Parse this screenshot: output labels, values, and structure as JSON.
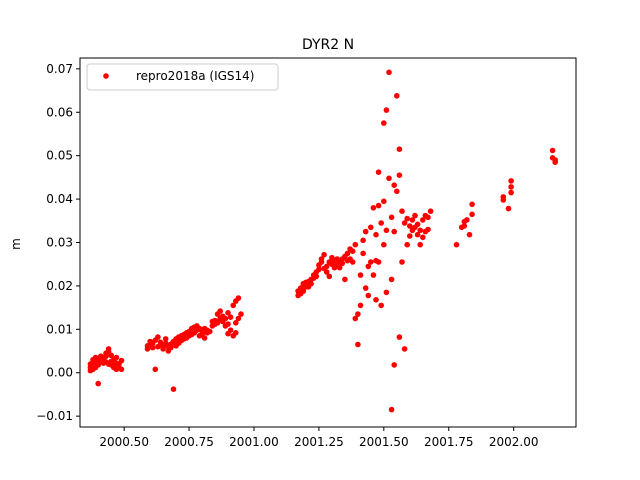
{
  "chart_data": {
    "type": "scatter",
    "title": "DYR2 N",
    "xlabel": "",
    "ylabel": "m",
    "xlim": [
      2000.33,
      2002.24
    ],
    "ylim": [
      -0.0125,
      0.0725
    ],
    "xticks": [
      2000.5,
      2000.75,
      2001.0,
      2001.25,
      2001.5,
      2001.75,
      2002.0
    ],
    "xtick_labels": [
      "2000.50",
      "2000.75",
      "2001.00",
      "2001.25",
      "2001.50",
      "2001.75",
      "2002.00"
    ],
    "yticks": [
      -0.01,
      0.0,
      0.01,
      0.02,
      0.03,
      0.04,
      0.05,
      0.06,
      0.07
    ],
    "ytick_labels": [
      "−0.01",
      "0.00",
      "0.01",
      "0.02",
      "0.03",
      "0.04",
      "0.05",
      "0.06",
      "0.07"
    ],
    "grid": false,
    "legend_position": "top-left",
    "series": [
      {
        "name": "repro2018a (IGS14)",
        "color": "#ff0000",
        "points": [
          [
            2000.37,
            0.0005
          ],
          [
            2000.37,
            0.0012
          ],
          [
            2000.37,
            0.002
          ],
          [
            2000.38,
            0.0008
          ],
          [
            2000.38,
            0.0015
          ],
          [
            2000.38,
            0.0025
          ],
          [
            2000.38,
            0.003
          ],
          [
            2000.39,
            0.0012
          ],
          [
            2000.39,
            0.002
          ],
          [
            2000.39,
            0.0028
          ],
          [
            2000.39,
            0.0035
          ],
          [
            2000.4,
            -0.0025
          ],
          [
            2000.4,
            0.0018
          ],
          [
            2000.4,
            0.0024
          ],
          [
            2000.41,
            0.003
          ],
          [
            2000.41,
            0.0038
          ],
          [
            2000.42,
            0.0022
          ],
          [
            2000.42,
            0.0028
          ],
          [
            2000.42,
            0.0032
          ],
          [
            2000.43,
            0.0025
          ],
          [
            2000.43,
            0.0045
          ],
          [
            2000.44,
            0.002
          ],
          [
            2000.44,
            0.0055
          ],
          [
            2000.44,
            0.0048
          ],
          [
            2000.45,
            0.0018
          ],
          [
            2000.45,
            0.0026
          ],
          [
            2000.45,
            0.004
          ],
          [
            2000.46,
            0.0012
          ],
          [
            2000.46,
            0.003
          ],
          [
            2000.47,
            0.0008
          ],
          [
            2000.47,
            0.0022
          ],
          [
            2000.47,
            0.0035
          ],
          [
            2000.48,
            0.0012
          ],
          [
            2000.48,
            0.002
          ],
          [
            2000.49,
            0.0008
          ],
          [
            2000.49,
            0.0028
          ],
          [
            2000.4,
            0.0032
          ],
          [
            2000.41,
            0.0025
          ],
          [
            2000.43,
            0.0038
          ],
          [
            2000.46,
            0.0018
          ],
          [
            2000.59,
            0.0055
          ],
          [
            2000.59,
            0.0062
          ],
          [
            2000.6,
            0.0065
          ],
          [
            2000.6,
            0.0072
          ],
          [
            2000.61,
            0.0058
          ],
          [
            2000.61,
            0.0068
          ],
          [
            2000.62,
            0.0008
          ],
          [
            2000.62,
            0.0075
          ],
          [
            2000.63,
            0.006
          ],
          [
            2000.63,
            0.0082
          ],
          [
            2000.64,
            0.0065
          ],
          [
            2000.64,
            0.007
          ],
          [
            2000.65,
            0.0055
          ],
          [
            2000.65,
            0.0062
          ],
          [
            2000.66,
            0.0068
          ],
          [
            2000.66,
            0.0078
          ],
          [
            2000.67,
            0.005
          ],
          [
            2000.67,
            0.006
          ],
          [
            2000.68,
            0.0058
          ],
          [
            2000.68,
            0.0066
          ],
          [
            2000.69,
            -0.0038
          ],
          [
            2000.69,
            0.0072
          ],
          [
            2000.7,
            0.0062
          ],
          [
            2000.7,
            0.0078
          ],
          [
            2000.71,
            0.0068
          ],
          [
            2000.71,
            0.0082
          ],
          [
            2000.72,
            0.0074
          ],
          [
            2000.72,
            0.0085
          ],
          [
            2000.73,
            0.0078
          ],
          [
            2000.73,
            0.0088
          ],
          [
            2000.74,
            0.008
          ],
          [
            2000.74,
            0.0092
          ],
          [
            2000.75,
            0.0085
          ],
          [
            2000.75,
            0.0095
          ],
          [
            2000.76,
            0.0088
          ],
          [
            2000.76,
            0.0102
          ],
          [
            2000.77,
            0.0092
          ],
          [
            2000.77,
            0.0105
          ],
          [
            2000.78,
            0.0098
          ],
          [
            2000.78,
            0.0108
          ],
          [
            2000.79,
            0.0085
          ],
          [
            2000.79,
            0.0102
          ],
          [
            2000.8,
            0.0095
          ],
          [
            2000.8,
            0.0088
          ],
          [
            2000.81,
            0.0102
          ],
          [
            2000.81,
            0.008
          ],
          [
            2000.82,
            0.0092
          ],
          [
            2000.82,
            0.0098
          ],
          [
            2000.83,
            0.0095
          ],
          [
            2000.84,
            0.0108
          ],
          [
            2000.84,
            0.0118
          ],
          [
            2000.85,
            0.0112
          ],
          [
            2000.85,
            0.012
          ],
          [
            2000.86,
            0.0115
          ],
          [
            2000.86,
            0.0135
          ],
          [
            2000.87,
            0.0125
          ],
          [
            2000.87,
            0.0142
          ],
          [
            2000.88,
            0.0118
          ],
          [
            2000.88,
            0.013
          ],
          [
            2000.89,
            0.0108
          ],
          [
            2000.89,
            0.0125
          ],
          [
            2000.9,
            0.009
          ],
          [
            2000.9,
            0.0112
          ],
          [
            2000.91,
            0.0098
          ],
          [
            2000.91,
            0.0128
          ],
          [
            2000.92,
            0.0085
          ],
          [
            2000.92,
            0.0155
          ],
          [
            2000.93,
            0.0092
          ],
          [
            2000.93,
            0.0165
          ],
          [
            2000.94,
            0.0125
          ],
          [
            2000.94,
            0.0172
          ],
          [
            2000.95,
            0.0135
          ],
          [
            2000.93,
            0.0115
          ],
          [
            2000.9,
            0.0138
          ],
          [
            2000.86,
            0.0118
          ],
          [
            2001.17,
            0.0178
          ],
          [
            2001.17,
            0.0188
          ],
          [
            2001.18,
            0.0182
          ],
          [
            2001.18,
            0.0195
          ],
          [
            2001.19,
            0.0188
          ],
          [
            2001.19,
            0.0205
          ],
          [
            2001.2,
            0.0198
          ],
          [
            2001.2,
            0.0208
          ],
          [
            2001.21,
            0.021
          ],
          [
            2001.21,
            0.0198
          ],
          [
            2001.22,
            0.0215
          ],
          [
            2001.22,
            0.0205
          ],
          [
            2001.23,
            0.0225
          ],
          [
            2001.23,
            0.0218
          ],
          [
            2001.24,
            0.0232
          ],
          [
            2001.24,
            0.0222
          ],
          [
            2001.25,
            0.0248
          ],
          [
            2001.25,
            0.0238
          ],
          [
            2001.26,
            0.0262
          ],
          [
            2001.26,
            0.0255
          ],
          [
            2001.27,
            0.0272
          ],
          [
            2001.27,
            0.024
          ],
          [
            2001.28,
            0.0245
          ],
          [
            2001.28,
            0.0232
          ],
          [
            2001.29,
            0.0255
          ],
          [
            2001.29,
            0.0222
          ],
          [
            2001.3,
            0.025
          ],
          [
            2001.3,
            0.0265
          ],
          [
            2001.31,
            0.0242
          ],
          [
            2001.31,
            0.0258
          ],
          [
            2001.32,
            0.0248
          ],
          [
            2001.32,
            0.0262
          ],
          [
            2001.33,
            0.0255
          ],
          [
            2001.33,
            0.0242
          ],
          [
            2001.34,
            0.0262
          ],
          [
            2001.34,
            0.0252
          ],
          [
            2001.35,
            0.0268
          ],
          [
            2001.35,
            0.0215
          ],
          [
            2001.36,
            0.0258
          ],
          [
            2001.36,
            0.0275
          ],
          [
            2001.37,
            0.0262
          ],
          [
            2001.37,
            0.0285
          ],
          [
            2001.38,
            0.0255
          ],
          [
            2001.38,
            0.028
          ],
          [
            2001.39,
            0.0295
          ],
          [
            2001.39,
            0.0125
          ],
          [
            2001.4,
            0.0065
          ],
          [
            2001.4,
            0.0135
          ],
          [
            2001.41,
            0.0155
          ],
          [
            2001.41,
            0.0225
          ],
          [
            2001.42,
            0.0305
          ],
          [
            2001.42,
            0.0275
          ],
          [
            2001.43,
            0.0325
          ],
          [
            2001.43,
            0.0195
          ],
          [
            2001.44,
            0.0178
          ],
          [
            2001.44,
            0.0245
          ],
          [
            2001.45,
            0.0335
          ],
          [
            2001.45,
            0.0255
          ],
          [
            2001.46,
            0.038
          ],
          [
            2001.46,
            0.0225
          ],
          [
            2001.47,
            0.0318
          ],
          [
            2001.47,
            0.0168
          ],
          [
            2001.48,
            0.0462
          ],
          [
            2001.48,
            0.0385
          ],
          [
            2001.49,
            0.0345
          ],
          [
            2001.49,
            0.0155
          ],
          [
            2001.5,
            0.0575
          ],
          [
            2001.5,
            0.0395
          ],
          [
            2001.51,
            0.0605
          ],
          [
            2001.51,
            0.0328
          ],
          [
            2001.52,
            0.0692
          ],
          [
            2001.52,
            0.0448
          ],
          [
            2001.53,
            0.0358
          ],
          [
            2001.53,
            0.0215
          ],
          [
            2001.54,
            0.0432
          ],
          [
            2001.54,
            0.0325
          ],
          [
            2001.55,
            0.0638
          ],
          [
            2001.55,
            0.0418
          ],
          [
            2001.56,
            0.0515
          ],
          [
            2001.56,
            0.0455
          ],
          [
            2001.57,
            0.0372
          ],
          [
            2001.57,
            0.0255
          ],
          [
            2001.58,
            0.0345
          ],
          [
            2001.58,
            0.0055
          ],
          [
            2001.59,
            0.0355
          ],
          [
            2001.59,
            0.0295
          ],
          [
            2001.6,
            0.0338
          ],
          [
            2001.6,
            0.0315
          ],
          [
            2001.61,
            0.0352
          ],
          [
            2001.61,
            0.0328
          ],
          [
            2001.62,
            0.0362
          ],
          [
            2001.62,
            0.0335
          ],
          [
            2001.63,
            0.0318
          ],
          [
            2001.63,
            0.0342
          ],
          [
            2001.64,
            0.0295
          ],
          [
            2001.64,
            0.0328
          ],
          [
            2001.65,
            0.0352
          ],
          [
            2001.65,
            0.0312
          ],
          [
            2001.66,
            0.0362
          ],
          [
            2001.66,
            0.0325
          ],
          [
            2001.67,
            0.0358
          ],
          [
            2001.67,
            0.033
          ],
          [
            2001.68,
            0.0372
          ],
          [
            2001.53,
            -0.0085
          ],
          [
            2001.54,
            0.0018
          ],
          [
            2001.56,
            0.0082
          ],
          [
            2001.51,
            0.0185
          ],
          [
            2001.48,
            0.0255
          ],
          [
            2001.5,
            0.0295
          ],
          [
            2001.47,
            0.0258
          ],
          [
            2001.78,
            0.0295
          ],
          [
            2001.8,
            0.0335
          ],
          [
            2001.81,
            0.0348
          ],
          [
            2001.81,
            0.0338
          ],
          [
            2001.82,
            0.0352
          ],
          [
            2001.83,
            0.0318
          ],
          [
            2001.84,
            0.0388
          ],
          [
            2001.84,
            0.0365
          ],
          [
            2001.96,
            0.0398
          ],
          [
            2001.96,
            0.0405
          ],
          [
            2001.98,
            0.0378
          ],
          [
            2001.99,
            0.0415
          ],
          [
            2001.99,
            0.0428
          ],
          [
            2001.99,
            0.0442
          ],
          [
            2002.15,
            0.0512
          ],
          [
            2002.15,
            0.0495
          ],
          [
            2002.16,
            0.0485
          ],
          [
            2002.16,
            0.049
          ]
        ]
      }
    ]
  }
}
